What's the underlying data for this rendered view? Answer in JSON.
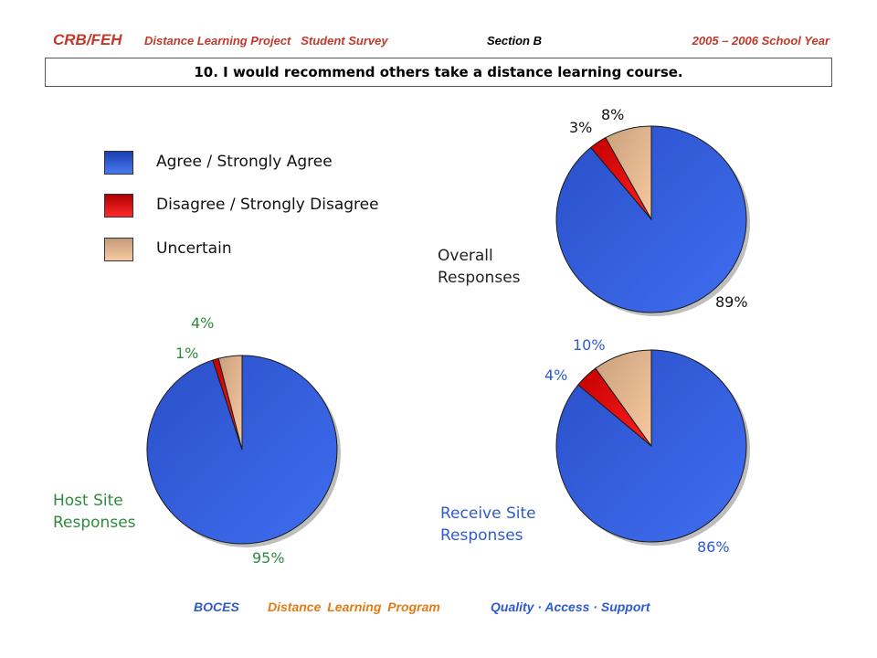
{
  "header": {
    "brand": "CRB/FEH",
    "project": "Distance Learning Project   Student Survey",
    "section": "Section B",
    "year": "2005 – 2006 School Year"
  },
  "question": "10. I would recommend others take a distance learning course.",
  "legend": [
    {
      "label": "Agree / Strongly Agree",
      "color": "#2f5bd0"
    },
    {
      "label": "Disagree / Strongly Disagree",
      "color": "#e61414"
    },
    {
      "label": "Uncertain",
      "color": "#e6b48c"
    }
  ],
  "chart_data": [
    {
      "type": "pie",
      "title": "Overall\nResponses",
      "title_color": "#222222",
      "label_color": "#111111",
      "categories": [
        "Agree / Strongly Agree",
        "Disagree / Strongly Disagree",
        "Uncertain"
      ],
      "values": [
        89,
        3,
        8
      ],
      "labels": [
        "89%",
        "3%",
        "8%"
      ]
    },
    {
      "type": "pie",
      "title": "Host Site\nResponses",
      "title_color": "#2e8b3e",
      "label_color": "#2e8b3e",
      "categories": [
        "Agree / Strongly Agree",
        "Disagree / Strongly Disagree",
        "Uncertain"
      ],
      "values": [
        95,
        1,
        4
      ],
      "labels": [
        "95%",
        "1%",
        "4%"
      ]
    },
    {
      "type": "pie",
      "title": "Receive Site\nResponses",
      "title_color": "#2f5bd0",
      "label_color": "#2f5bd0",
      "categories": [
        "Agree / Strongly Agree",
        "Disagree / Strongly Disagree",
        "Uncertain"
      ],
      "values": [
        86,
        4,
        10
      ],
      "labels": [
        "86%",
        "4%",
        "10%"
      ]
    }
  ],
  "footer": {
    "boces": "BOCES",
    "program": "Distance Learning Program",
    "tagline": "Quality · Access · Support"
  }
}
